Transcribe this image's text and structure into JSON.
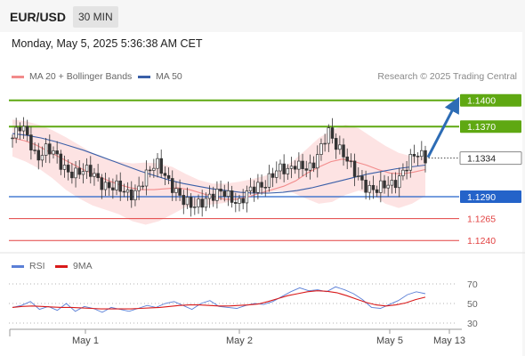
{
  "header": {
    "pair": "EUR/USD",
    "timeframe": "30 MIN",
    "datetime": "Monday, May 5, 2025 5:36:38 AM CET"
  },
  "legend": {
    "ma20": {
      "label": "MA 20 + Bollinger Bands",
      "color": "#f28b8b"
    },
    "ma50": {
      "label": "MA 50",
      "color": "#3a5fa8"
    }
  },
  "credit": "Research © 2025 Trading Central",
  "rsi_legend": {
    "rsi": {
      "label": "RSI",
      "color": "#5b7fd6"
    },
    "ma9": {
      "label": "9MA",
      "color": "#d91a1a"
    }
  },
  "chart_data": [
    {
      "type": "candlestick",
      "title": "EUR/USD 30 MIN",
      "x_tick_labels": [
        "May 1",
        "May 2",
        "May 5",
        "May 13"
      ],
      "current_price": {
        "value": 1.1334,
        "label": "1.1334"
      },
      "levels": [
        {
          "value": 1.14,
          "label": "1.1400",
          "kind": "resistance",
          "color": "#5fa812",
          "tag": "filled"
        },
        {
          "value": 1.137,
          "label": "1.1370",
          "kind": "resistance",
          "color": "#5fa812",
          "tag": "filled"
        },
        {
          "value": 1.129,
          "label": "1.1290",
          "kind": "pivot",
          "color": "#2463c9",
          "tag": "filled"
        },
        {
          "value": 1.1265,
          "label": "1.1265",
          "kind": "support",
          "color": "#e24141",
          "tag": "text"
        },
        {
          "value": 1.124,
          "label": "1.1240",
          "kind": "support",
          "color": "#e24141",
          "tag": "text"
        }
      ],
      "ylim": [
        1.1228,
        1.1418
      ],
      "close_path": [
        1.1357,
        1.1368,
        1.1356,
        1.1336,
        1.1345,
        1.1338,
        1.1326,
        1.1321,
        1.1318,
        1.1317,
        1.1315,
        1.1308,
        1.1302,
        1.1298,
        1.1292,
        1.1296,
        1.1308,
        1.1318,
        1.1326,
        1.1315,
        1.13,
        1.1283,
        1.1278,
        1.1285,
        1.129,
        1.1289,
        1.1294,
        1.1291,
        1.1285,
        1.1292,
        1.1298,
        1.1305,
        1.1318,
        1.132,
        1.1316,
        1.133,
        1.1327,
        1.132,
        1.134,
        1.1368,
        1.1352,
        1.1335,
        1.1318,
        1.131,
        1.1302,
        1.1297,
        1.13,
        1.1305,
        1.1318,
        1.133,
        1.1336,
        1.1334
      ],
      "ma20": [
        1.1357,
        1.1354,
        1.1349,
        1.1342,
        1.1335,
        1.1328,
        1.1321,
        1.1315,
        1.1309,
        1.1304,
        1.13,
        1.1298,
        1.1298,
        1.1299,
        1.13,
        1.1298,
        1.1294,
        1.129,
        1.1287,
        1.1287,
        1.129,
        1.1294,
        1.1298,
        1.1302,
        1.1308,
        1.1317,
        1.1324,
        1.133,
        1.1333,
        1.133,
        1.1326,
        1.1321,
        1.1317,
        1.1316,
        1.1318,
        1.1321
      ],
      "ma50": [
        1.1362,
        1.136,
        1.1357,
        1.1353,
        1.1348,
        1.1343,
        1.1337,
        1.1331,
        1.1325,
        1.1319,
        1.1314,
        1.1309,
        1.1305,
        1.1302,
        1.1299,
        1.1297,
        1.1295,
        1.1294,
        1.1294,
        1.1295,
        1.1297,
        1.13,
        1.1304,
        1.1308,
        1.1312,
        1.1316,
        1.1319,
        1.1322,
        1.1324,
        1.1326
      ],
      "bb_upper": [
        1.1378,
        1.1376,
        1.1372,
        1.1366,
        1.1358,
        1.1349,
        1.134,
        1.1334,
        1.133,
        1.1328,
        1.1329,
        1.1328,
        1.1324,
        1.1316,
        1.1309,
        1.1305,
        1.1305,
        1.1307,
        1.131,
        1.1314,
        1.132,
        1.133,
        1.1343,
        1.1357,
        1.1366,
        1.1372,
        1.1368,
        1.1358,
        1.1348,
        1.134,
        1.1336,
        1.1335
      ],
      "bb_lower": [
        1.1336,
        1.133,
        1.1322,
        1.1311,
        1.1298,
        1.1288,
        1.128,
        1.1275,
        1.127,
        1.1262,
        1.1258,
        1.1262,
        1.127,
        1.1278,
        1.128,
        1.1281,
        1.1283,
        1.1288,
        1.1292,
        1.1294,
        1.1297,
        1.1295,
        1.1288,
        1.1282,
        1.1284,
        1.1292,
        1.1297,
        1.1293,
        1.1282,
        1.1277,
        1.1282,
        1.1291
      ],
      "projection": {
        "from": 1.1334,
        "to": 1.14
      }
    },
    {
      "type": "line",
      "title": "RSI",
      "yticks": [
        30,
        50,
        70
      ],
      "ylim": [
        20,
        80
      ],
      "series": [
        {
          "name": "RSI",
          "color": "#5b7fd6",
          "values": [
            46,
            48,
            52,
            44,
            47,
            43,
            50,
            42,
            47,
            45,
            41,
            46,
            44,
            42,
            45,
            48,
            46,
            50,
            52,
            48,
            44,
            50,
            53,
            47,
            46,
            45,
            48,
            50,
            49,
            52,
            57,
            62,
            66,
            63,
            64,
            62,
            67,
            64,
            60,
            54,
            46,
            45,
            49,
            53,
            59,
            62,
            60
          ]
        },
        {
          "name": "9MA",
          "color": "#d91a1a",
          "values": [
            46,
            47,
            47.5,
            47,
            46.5,
            46,
            46,
            45.5,
            45,
            44.5,
            44.5,
            44.5,
            44.5,
            45,
            45.5,
            46,
            47,
            48,
            48.5,
            48.5,
            48,
            47.5,
            47.5,
            48,
            48.5,
            49.5,
            52,
            55,
            58,
            60,
            62,
            63,
            62.5,
            61,
            58,
            54.5,
            51,
            48.5,
            47.5,
            48.5,
            50.5,
            54,
            56.5
          ]
        }
      ]
    }
  ]
}
